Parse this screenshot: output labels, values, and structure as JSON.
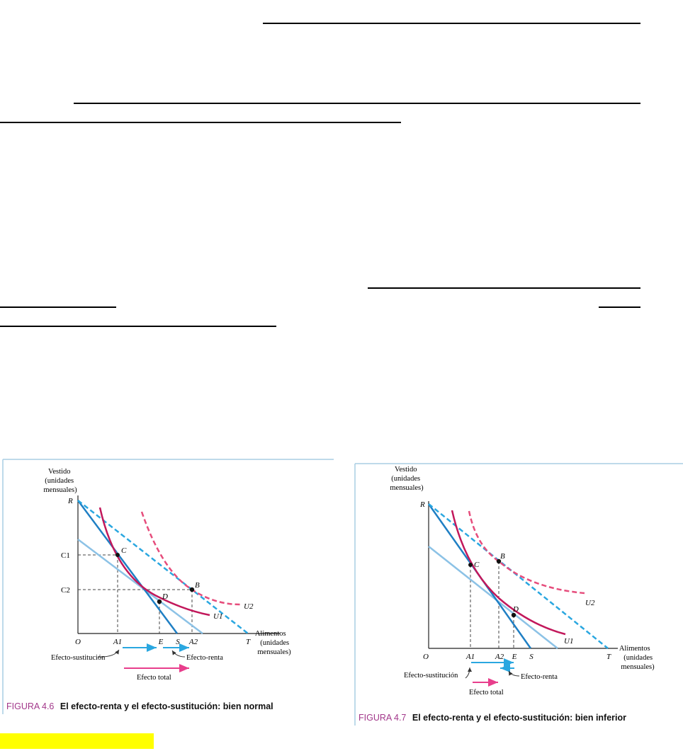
{
  "figures": [
    {
      "caption_number": "FIGURA 4.6",
      "caption_text": "El efecto-renta y el efecto-sustitución: bien normal",
      "y_axis_label": [
        "Vestido",
        "(unidades",
        "mensuales)"
      ],
      "x_axis_label": [
        "Alimentos",
        "(unidades",
        "mensuales)"
      ],
      "y_ticks": [
        "R",
        "C1",
        "C2"
      ],
      "x_ticks": [
        "O",
        "A1",
        "E",
        "S",
        "A2",
        "T"
      ],
      "points": [
        "C",
        "D",
        "B"
      ],
      "curves": [
        "U1",
        "U2"
      ],
      "annotations": [
        "Efecto-sustitución",
        "Efecto-renta",
        "Efecto total"
      ]
    },
    {
      "caption_number": "FIGURA 4.7",
      "caption_text": "El efecto-renta y el efecto-sustitución: bien inferior",
      "y_axis_label": [
        "Vestido",
        "(unidades",
        "mensuales)"
      ],
      "x_axis_label": [
        "Alimentos",
        "(unidades",
        "mensuales)"
      ],
      "y_ticks": [
        "R"
      ],
      "x_ticks": [
        "O",
        "A1",
        "A2",
        "E",
        "S",
        "T"
      ],
      "points": [
        "C",
        "B",
        "D"
      ],
      "curves": [
        "U1",
        "U2"
      ],
      "annotations": [
        "Efecto-sustitución",
        "Efecto-renta",
        "Efecto total"
      ]
    }
  ],
  "colors": {
    "budget_line": "#1f7fc4",
    "light_budget_line": "#8cc2e6",
    "indifference_curve": "#c2185b",
    "dashed_indifference": "#e64d7c",
    "arrow_cyan": "#2aa7e0",
    "arrow_magenta": "#e83e8c",
    "caption_number": "#a2378a",
    "highlight": "#ffff00"
  }
}
